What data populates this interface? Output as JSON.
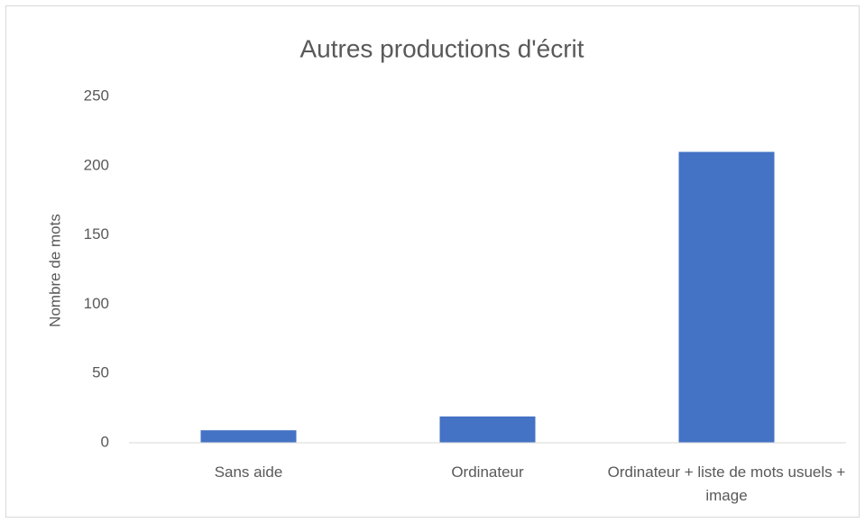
{
  "chart_data": {
    "type": "bar",
    "title": "Autres productions d'écrit",
    "y_label": "Nombre de mots",
    "categories": [
      "Sans aide",
      "Ordinateur",
      "Ordinateur + liste de mots usuels + image"
    ],
    "values": [
      9,
      19,
      210
    ],
    "color": "#4472c4",
    "ylim": [
      0,
      250
    ],
    "yticks": [
      0,
      50,
      100,
      150,
      200,
      250
    ],
    "grid": false
  }
}
